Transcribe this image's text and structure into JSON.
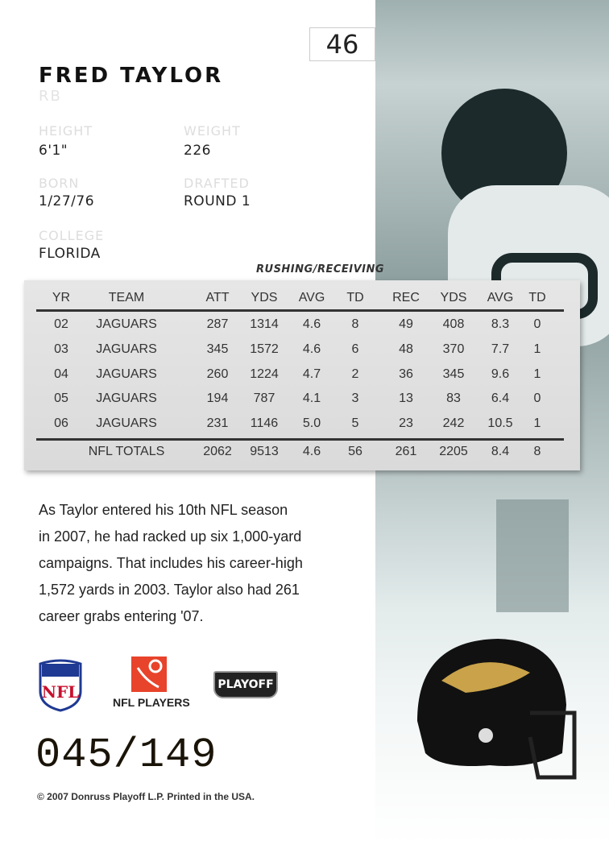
{
  "card": {
    "number": "46",
    "name": "FRED TAYLOR",
    "position": "RB"
  },
  "bio": {
    "height_label": "HEIGHT",
    "height": "6'1\"",
    "weight_label": "WEIGHT",
    "weight": "226",
    "born_label": "BORN",
    "born": "1/27/76",
    "drafted_label": "DRAFTED",
    "drafted": "ROUND 1",
    "college_label": "COLLEGE",
    "college": "FLORIDA"
  },
  "stats": {
    "section_title": "RUSHING/RECEIVING",
    "headers": [
      "YR",
      "TEAM",
      "ATT",
      "YDS",
      "AVG",
      "TD",
      "REC",
      "YDS",
      "AVG",
      "TD"
    ],
    "rows": [
      [
        "02",
        "JAGUARS",
        "287",
        "1314",
        "4.6",
        "8",
        "49",
        "408",
        "8.3",
        "0"
      ],
      [
        "03",
        "JAGUARS",
        "345",
        "1572",
        "4.6",
        "6",
        "48",
        "370",
        "7.7",
        "1"
      ],
      [
        "04",
        "JAGUARS",
        "260",
        "1224",
        "4.7",
        "2",
        "36",
        "345",
        "9.6",
        "1"
      ],
      [
        "05",
        "JAGUARS",
        "194",
        "787",
        "4.1",
        "3",
        "13",
        "83",
        "6.4",
        "0"
      ],
      [
        "06",
        "JAGUARS",
        "231",
        "1146",
        "5.0",
        "5",
        "23",
        "242",
        "10.5",
        "1"
      ]
    ],
    "totals": [
      "",
      "NFL TOTALS",
      "2062",
      "9513",
      "4.6",
      "56",
      "261",
      "2205",
      "8.4",
      "8"
    ]
  },
  "blurb": [
    "As Taylor entered his 10th NFL season",
    "in 2007, he had racked up six 1,000-yard",
    "campaigns. That includes his career-high",
    "1,572 yards in 2003. Taylor also had 261",
    "career grabs entering '07."
  ],
  "logos": {
    "nfl": "NFL",
    "nfl_players": "NFL PLAYERS",
    "playoff": "PLAYOFF"
  },
  "serial": "045/149",
  "copyright": "© 2007 Donruss Playoff L.P. Printed in the USA.",
  "colors": {
    "nfl_red": "#c8102e",
    "nfl_blue": "#1f3a93",
    "players_orange": "#e8432b",
    "helmet_black": "#111111",
    "jaguar_gold": "#c9a24a"
  }
}
